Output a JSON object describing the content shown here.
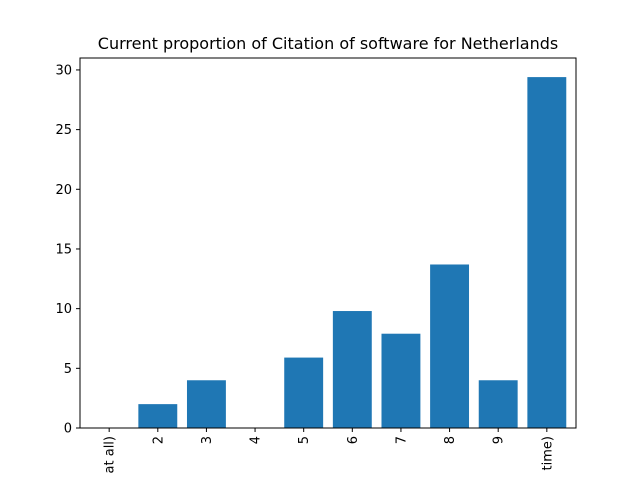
{
  "chart_data": {
    "type": "bar",
    "title": "Current proportion of Citation of software for Netherlands",
    "xlabel": "",
    "ylabel": "",
    "categories": [
      "at all)",
      "2",
      "3",
      "4",
      "5",
      "6",
      "7",
      "8",
      "9",
      "time)"
    ],
    "values": [
      0,
      2,
      4,
      0,
      5.9,
      9.8,
      7.9,
      13.7,
      4,
      29.4
    ],
    "ylim": [
      0,
      31
    ],
    "yticks": [
      0,
      5,
      10,
      15,
      20,
      25,
      30
    ],
    "bar_color": "#1f77b4",
    "grid": false,
    "legend": "none"
  }
}
